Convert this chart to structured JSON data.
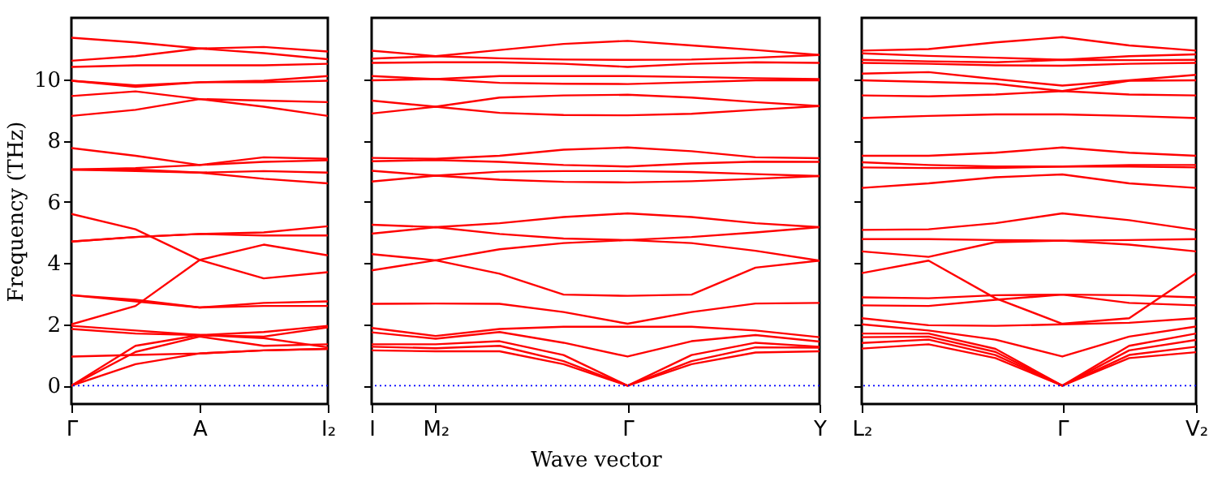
{
  "chart_data": [
    {
      "type": "line",
      "ylabel": "Frequency (THz)",
      "color": "#ff0000",
      "categories": [
        "Γ",
        null,
        "A",
        null,
        "I₂"
      ],
      "ylim": [
        -0.6,
        12
      ],
      "yticks": [
        0,
        2,
        4,
        6,
        8,
        10
      ],
      "grid": false,
      "line_style": "solid",
      "marker": "none",
      "ref_lines": [
        {
          "axis": "y",
          "value": 0,
          "color": "#0000ff",
          "line_style": "dotted"
        }
      ],
      "series": [
        {
          "values": [
            11.35,
            11.2,
            11.0,
            11.05,
            10.9
          ]
        },
        {
          "values": [
            10.6,
            10.75,
            11.0,
            10.85,
            10.65
          ]
        },
        {
          "values": [
            10.4,
            10.45,
            10.45,
            10.45,
            10.5
          ]
        },
        {
          "values": [
            9.95,
            9.8,
            9.9,
            9.95,
            10.1
          ]
        },
        {
          "values": [
            9.95,
            9.75,
            9.9,
            9.9,
            9.95
          ]
        },
        {
          "values": [
            9.45,
            9.6,
            9.35,
            9.3,
            9.25
          ]
        },
        {
          "values": [
            8.8,
            9.0,
            9.35,
            9.1,
            8.8
          ]
        },
        {
          "values": [
            7.75,
            7.5,
            7.2,
            7.45,
            7.4
          ]
        },
        {
          "values": [
            7.05,
            7.1,
            7.2,
            7.3,
            7.35
          ]
        },
        {
          "values": [
            7.05,
            7.05,
            6.95,
            7.0,
            6.95
          ]
        },
        {
          "values": [
            7.05,
            7.0,
            6.95,
            6.75,
            6.6
          ]
        },
        {
          "values": [
            5.6,
            5.1,
            4.1,
            3.5,
            3.7
          ]
        },
        {
          "values": [
            4.7,
            4.85,
            4.95,
            5.0,
            5.2
          ]
        },
        {
          "values": [
            4.7,
            4.85,
            4.95,
            4.9,
            4.9
          ]
        },
        {
          "values": [
            2.0,
            2.6,
            4.1,
            4.6,
            4.25
          ]
        },
        {
          "values": [
            2.95,
            2.8,
            2.55,
            2.7,
            2.75
          ]
        },
        {
          "values": [
            2.95,
            2.75,
            2.55,
            2.6,
            2.6
          ]
        },
        {
          "values": [
            1.95,
            1.8,
            1.65,
            1.6,
            1.9
          ]
        },
        {
          "values": [
            1.85,
            1.7,
            1.65,
            1.75,
            1.95
          ]
        },
        {
          "values": [
            0.95,
            1.0,
            1.05,
            1.15,
            1.2
          ]
        },
        {
          "values": [
            0,
            1.3,
            1.65,
            1.55,
            1.25
          ]
        },
        {
          "values": [
            0,
            1.1,
            1.6,
            1.3,
            1.35
          ]
        },
        {
          "values": [
            0,
            0.7,
            1.05,
            1.15,
            1.2
          ]
        }
      ]
    },
    {
      "type": "line",
      "xlabel": "Wave vector",
      "color": "#ff0000",
      "categories": [
        "I",
        "M₂",
        null,
        null,
        "Γ",
        null,
        null,
        "Y"
      ],
      "ylim": [
        -0.6,
        12
      ],
      "yticks": [
        {
          "value": 0,
          "label": null
        },
        {
          "value": 2,
          "label": null
        },
        {
          "value": 4,
          "label": null
        },
        {
          "value": 6,
          "label": null
        },
        {
          "value": 8,
          "label": null
        },
        {
          "value": 10,
          "label": null
        }
      ],
      "tick_labels": "x",
      "grid": false,
      "line_style": "solid",
      "marker": "none",
      "ref_lines": [
        {
          "axis": "y",
          "value": 0,
          "color": "#0000ff",
          "line_style": "dotted"
        }
      ],
      "series": [
        {
          "values": [
            10.93,
            10.75,
            10.95,
            11.15,
            11.25,
            11.1,
            10.95,
            10.79
          ]
        },
        {
          "values": [
            10.67,
            10.75,
            10.68,
            10.64,
            10.63,
            10.64,
            10.7,
            10.79
          ]
        },
        {
          "values": [
            10.53,
            10.55,
            10.55,
            10.5,
            10.4,
            10.5,
            10.55,
            10.53
          ]
        },
        {
          "values": [
            10.1,
            10.0,
            10.1,
            10.1,
            10.1,
            10.07,
            10.03,
            10.0
          ]
        },
        {
          "values": [
            9.96,
            10.0,
            9.88,
            9.85,
            9.84,
            9.9,
            9.96,
            9.96
          ]
        },
        {
          "values": [
            9.3,
            9.1,
            9.4,
            9.47,
            9.49,
            9.4,
            9.25,
            9.12
          ]
        },
        {
          "values": [
            8.88,
            9.1,
            8.9,
            8.83,
            8.82,
            8.87,
            9.0,
            9.12
          ]
        },
        {
          "values": [
            7.43,
            7.4,
            7.5,
            7.7,
            7.77,
            7.65,
            7.45,
            7.42
          ]
        },
        {
          "values": [
            7.32,
            7.36,
            7.3,
            7.2,
            7.15,
            7.25,
            7.31,
            7.3
          ]
        },
        {
          "values": [
            7.01,
            6.85,
            6.98,
            7.0,
            7.0,
            6.97,
            6.9,
            6.84
          ]
        },
        {
          "values": [
            6.66,
            6.85,
            6.72,
            6.65,
            6.63,
            6.67,
            6.75,
            6.84
          ]
        },
        {
          "values": [
            5.25,
            5.17,
            5.3,
            5.5,
            5.62,
            5.5,
            5.3,
            5.17
          ]
        },
        {
          "values": [
            4.96,
            5.17,
            4.95,
            4.8,
            4.75,
            4.85,
            5.0,
            5.17
          ]
        },
        {
          "values": [
            4.29,
            4.09,
            4.45,
            4.65,
            4.75,
            4.65,
            4.4,
            4.08
          ]
        },
        {
          "values": [
            3.76,
            4.09,
            3.65,
            2.97,
            2.93,
            2.97,
            3.85,
            4.08
          ]
        },
        {
          "values": [
            2.67,
            2.68,
            2.67,
            2.4,
            2.02,
            2.4,
            2.68,
            2.7
          ]
        },
        {
          "values": [
            1.88,
            1.62,
            1.85,
            1.92,
            1.92,
            1.92,
            1.8,
            1.58
          ]
        },
        {
          "values": [
            1.74,
            1.53,
            1.75,
            1.4,
            0.95,
            1.45,
            1.65,
            1.44
          ]
        },
        {
          "values": [
            1.35,
            1.35,
            1.45,
            1.0,
            0.0,
            1.0,
            1.4,
            1.27
          ]
        },
        {
          "values": [
            1.27,
            1.22,
            1.3,
            0.8,
            0.0,
            0.8,
            1.25,
            1.24
          ]
        },
        {
          "values": [
            1.15,
            1.12,
            1.12,
            0.7,
            0.0,
            0.7,
            1.08,
            1.12
          ]
        }
      ]
    },
    {
      "type": "line",
      "color": "#ff0000",
      "categories": [
        "L₂",
        null,
        null,
        "Γ",
        null,
        "V₂"
      ],
      "ylim": [
        -0.6,
        12
      ],
      "yticks": [
        {
          "value": 0,
          "label": null
        },
        {
          "value": 2,
          "label": null
        },
        {
          "value": 4,
          "label": null
        },
        {
          "value": 6,
          "label": null
        },
        {
          "value": 8,
          "label": null
        },
        {
          "value": 10,
          "label": null
        }
      ],
      "tick_labels": "x",
      "grid": false,
      "line_style": "solid",
      "marker": "none",
      "ref_lines": [
        {
          "axis": "y",
          "value": 0,
          "color": "#0000ff",
          "line_style": "dotted"
        }
      ],
      "series": [
        {
          "values": [
            10.93,
            10.98,
            11.2,
            11.37,
            11.1,
            10.93
          ]
        },
        {
          "values": [
            10.84,
            10.76,
            10.7,
            10.63,
            10.75,
            10.81
          ]
        },
        {
          "values": [
            10.63,
            10.58,
            10.55,
            10.63,
            10.62,
            10.63
          ]
        },
        {
          "values": [
            10.53,
            10.5,
            10.45,
            10.44,
            10.5,
            10.53
          ]
        },
        {
          "values": [
            10.18,
            10.23,
            10.0,
            9.79,
            9.96,
            10.14
          ]
        },
        {
          "values": [
            9.96,
            9.91,
            9.85,
            9.61,
            9.95,
            9.96
          ]
        },
        {
          "values": [
            9.47,
            9.44,
            9.5,
            9.61,
            9.5,
            9.47
          ]
        },
        {
          "values": [
            8.73,
            8.8,
            8.85,
            8.85,
            8.8,
            8.73
          ]
        },
        {
          "values": [
            7.5,
            7.5,
            7.6,
            7.77,
            7.6,
            7.5
          ]
        },
        {
          "values": [
            7.29,
            7.2,
            7.15,
            7.15,
            7.2,
            7.2
          ]
        },
        {
          "values": [
            7.12,
            7.1,
            7.1,
            7.15,
            7.15,
            7.12
          ]
        },
        {
          "values": [
            6.45,
            6.6,
            6.8,
            6.89,
            6.6,
            6.45
          ]
        },
        {
          "values": [
            5.08,
            5.1,
            5.3,
            5.62,
            5.4,
            5.08
          ]
        },
        {
          "values": [
            4.78,
            4.78,
            4.75,
            4.73,
            4.75,
            4.78
          ]
        },
        {
          "values": [
            4.38,
            4.2,
            4.68,
            4.73,
            4.6,
            4.38
          ]
        },
        {
          "values": [
            3.67,
            4.08,
            2.85,
            2.02,
            2.2,
            3.67
          ]
        },
        {
          "values": [
            2.88,
            2.85,
            2.95,
            2.97,
            2.95,
            2.88
          ]
        },
        {
          "values": [
            2.62,
            2.6,
            2.8,
            2.97,
            2.7,
            2.62
          ]
        },
        {
          "values": [
            2.2,
            1.97,
            1.95,
            2.0,
            2.05,
            2.2
          ]
        },
        {
          "values": [
            2.0,
            1.8,
            1.5,
            0.95,
            1.6,
            1.93
          ]
        },
        {
          "values": [
            1.7,
            1.7,
            1.2,
            0.0,
            1.3,
            1.7
          ]
        },
        {
          "values": [
            1.58,
            1.6,
            1.1,
            0.0,
            1.15,
            1.49
          ]
        },
        {
          "values": [
            1.39,
            1.5,
            1.0,
            0.0,
            1.0,
            1.27
          ]
        },
        {
          "values": [
            1.21,
            1.35,
            0.9,
            0.0,
            0.9,
            1.09
          ]
        }
      ]
    }
  ]
}
